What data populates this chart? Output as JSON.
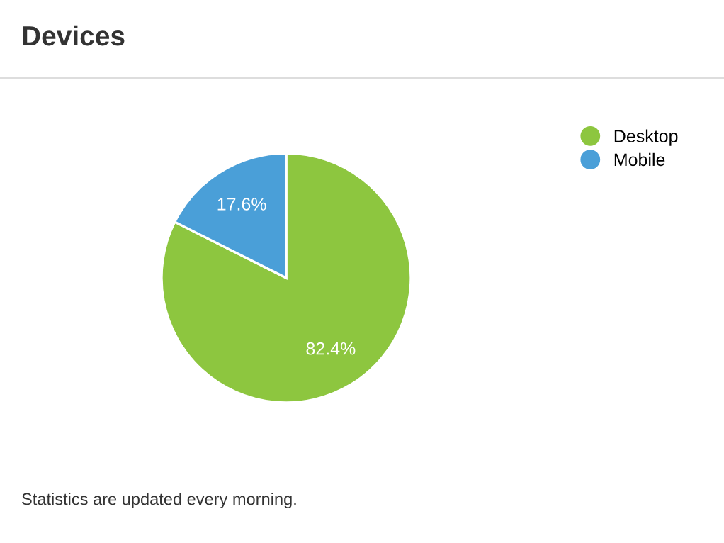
{
  "chart_data": {
    "type": "pie",
    "title": "Devices",
    "categories": [
      "Desktop",
      "Mobile"
    ],
    "values": [
      82.4,
      17.6
    ],
    "colors": [
      "#8dc63f",
      "#4a9fd8"
    ],
    "value_labels": [
      "82.4%",
      "17.6%"
    ],
    "legend": "top right",
    "annotations": [
      "Statistics are updated every morning."
    ]
  }
}
